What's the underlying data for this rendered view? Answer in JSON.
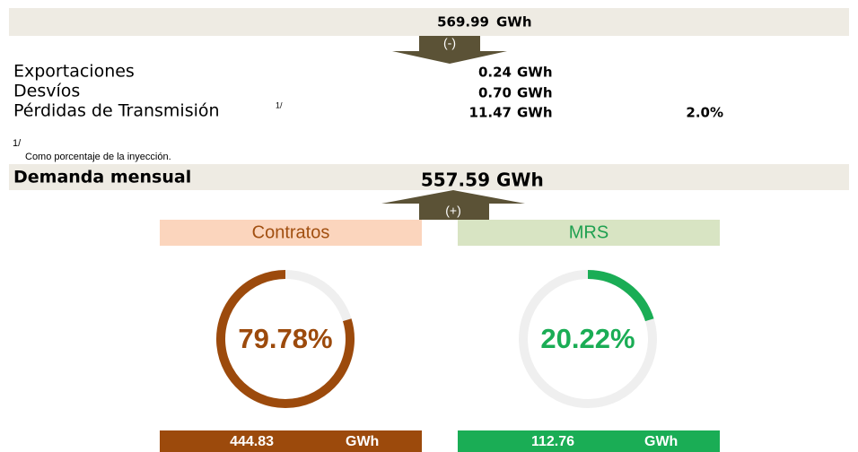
{
  "injection": {
    "value": "569.99",
    "unit": "GWh"
  },
  "minus_label": "(-)",
  "rows": [
    {
      "label": "Exportaciones",
      "value": "0.24",
      "unit": "GWh"
    },
    {
      "label": "Desvíos",
      "value": "0.70",
      "unit": "GWh"
    },
    {
      "label": "Pérdidas de Transmisión",
      "sup": "1/",
      "value": "11.47",
      "unit": "GWh",
      "percent": "2.0%"
    }
  ],
  "footnote": {
    "mark": "1/",
    "text": "Como porcentaje de la inyección."
  },
  "demand": {
    "label": "Demanda mensual",
    "value": "557.59",
    "unit": "GWh"
  },
  "plus_label": "(+)",
  "gauges": [
    {
      "title": "Contratos",
      "percent": {
        "value": 79.78,
        "label": "79.78%"
      },
      "energy": "444.83",
      "unit": "GWh"
    },
    {
      "title": "MRS",
      "percent": {
        "value": 20.22,
        "label": "20.22%"
      },
      "energy": "112.76",
      "unit": "GWh"
    }
  ]
}
